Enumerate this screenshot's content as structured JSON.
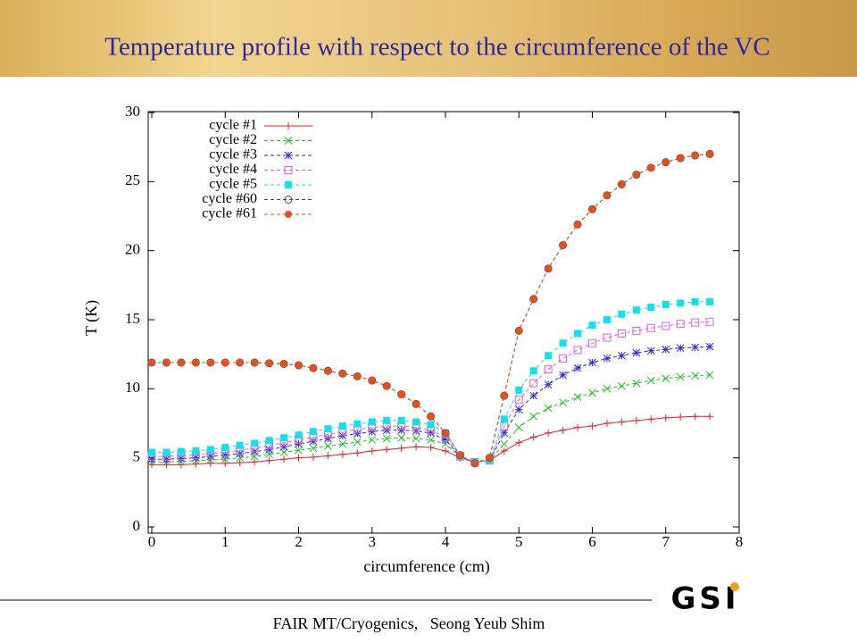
{
  "chart_data": {
    "type": "line",
    "title": "Temperature profile with respect to the circumference of the VC",
    "xlabel": "circumference (cm)",
    "ylabel": "T (K)",
    "x": [
      0,
      0.2,
      0.4,
      0.6,
      0.8,
      1.0,
      1.2,
      1.4,
      1.6,
      1.8,
      2.0,
      2.2,
      2.4,
      2.6,
      2.8,
      3.0,
      3.2,
      3.4,
      3.6,
      3.8,
      4.0,
      4.2,
      4.4,
      4.6,
      4.8,
      5.0,
      5.2,
      5.4,
      5.6,
      5.8,
      6.0,
      6.2,
      6.4,
      6.6,
      6.8,
      7.0,
      7.2,
      7.4,
      7.6
    ],
    "series": [
      {
        "name": "cycle #1",
        "color": "#e8202a",
        "marker": "plus",
        "values": [
          4.5,
          4.5,
          4.5,
          4.55,
          4.6,
          4.6,
          4.65,
          4.7,
          4.8,
          4.9,
          5.0,
          5.05,
          5.15,
          5.25,
          5.35,
          5.5,
          5.6,
          5.7,
          5.8,
          5.75,
          5.5,
          5.0,
          4.7,
          4.8,
          5.5,
          6.1,
          6.5,
          6.8,
          7.0,
          7.2,
          7.3,
          7.5,
          7.6,
          7.7,
          7.8,
          7.9,
          7.95,
          8.0,
          8.0
        ]
      },
      {
        "name": "cycle #2",
        "color": "#22c022",
        "marker": "cross",
        "values": [
          4.7,
          4.7,
          4.75,
          4.8,
          4.85,
          4.9,
          5.0,
          5.1,
          5.25,
          5.4,
          5.55,
          5.7,
          5.85,
          6.0,
          6.15,
          6.3,
          6.4,
          6.45,
          6.4,
          6.3,
          6.0,
          5.1,
          4.7,
          4.8,
          6.0,
          7.2,
          8.0,
          8.6,
          9.0,
          9.4,
          9.7,
          10.0,
          10.2,
          10.4,
          10.6,
          10.75,
          10.85,
          10.95,
          11.0
        ]
      },
      {
        "name": "cycle #3",
        "color": "#2a2ae0",
        "marker": "star",
        "values": [
          4.9,
          4.9,
          4.95,
          5.0,
          5.1,
          5.2,
          5.3,
          5.45,
          5.6,
          5.8,
          6.0,
          6.2,
          6.4,
          6.6,
          6.75,
          6.9,
          7.0,
          7.0,
          6.95,
          6.8,
          6.3,
          5.1,
          4.7,
          4.8,
          6.8,
          8.5,
          9.5,
          10.3,
          11.0,
          11.5,
          11.9,
          12.2,
          12.4,
          12.6,
          12.75,
          12.85,
          12.95,
          13.0,
          13.05
        ]
      },
      {
        "name": "cycle #4",
        "color": "#e060e0",
        "marker": "square-open",
        "values": [
          5.1,
          5.1,
          5.15,
          5.2,
          5.3,
          5.4,
          5.55,
          5.7,
          5.9,
          6.1,
          6.3,
          6.5,
          6.7,
          6.9,
          7.05,
          7.2,
          7.3,
          7.3,
          7.2,
          7.0,
          6.5,
          5.1,
          4.7,
          4.8,
          7.3,
          9.2,
          10.4,
          11.4,
          12.2,
          12.8,
          13.3,
          13.7,
          14.0,
          14.2,
          14.4,
          14.55,
          14.7,
          14.8,
          14.85
        ]
      },
      {
        "name": "cycle #5",
        "color": "#10e0f0",
        "marker": "square",
        "values": [
          5.4,
          5.4,
          5.45,
          5.5,
          5.6,
          5.75,
          5.9,
          6.05,
          6.25,
          6.45,
          6.65,
          6.9,
          7.1,
          7.3,
          7.45,
          7.6,
          7.7,
          7.7,
          7.6,
          7.4,
          6.8,
          5.1,
          4.7,
          4.8,
          7.8,
          9.9,
          11.3,
          12.4,
          13.3,
          14.0,
          14.6,
          15.0,
          15.4,
          15.7,
          15.9,
          16.1,
          16.2,
          16.3,
          16.3
        ]
      },
      {
        "name": "cycle #60",
        "color": "#444444",
        "marker": "circle-open",
        "values": [
          11.9,
          11.9,
          11.9,
          11.9,
          11.9,
          11.9,
          11.9,
          11.9,
          11.85,
          11.8,
          11.7,
          11.5,
          11.3,
          11.1,
          10.9,
          10.6,
          10.2,
          9.6,
          8.9,
          8.0,
          6.8,
          5.2,
          4.6,
          5.0,
          9.5,
          14.2,
          16.5,
          18.7,
          20.4,
          21.9,
          23.0,
          24.0,
          24.8,
          25.5,
          26.0,
          26.4,
          26.7,
          26.9,
          27.0
        ]
      },
      {
        "name": "cycle #61",
        "color": "#e8501a",
        "marker": "circle",
        "values": [
          11.9,
          11.9,
          11.9,
          11.9,
          11.9,
          11.9,
          11.9,
          11.9,
          11.85,
          11.8,
          11.7,
          11.5,
          11.3,
          11.1,
          10.9,
          10.6,
          10.2,
          9.6,
          8.9,
          8.0,
          6.8,
          5.2,
          4.6,
          5.0,
          9.5,
          14.2,
          16.5,
          18.7,
          20.4,
          21.9,
          23.0,
          24.0,
          24.8,
          25.5,
          26.0,
          26.4,
          26.7,
          26.9,
          27.0
        ]
      }
    ],
    "xlim": [
      0,
      8
    ],
    "xticks": [
      0,
      1,
      2,
      3,
      4,
      5,
      6,
      7,
      8
    ],
    "ylim": [
      0,
      30
    ],
    "yticks": [
      0,
      5,
      10,
      15,
      20,
      25,
      30
    ],
    "legend": "upper-left"
  },
  "footer": {
    "text": "FAIR MT/Cryogenics,   Seong Yeub Shim",
    "logo": "GSI"
  }
}
